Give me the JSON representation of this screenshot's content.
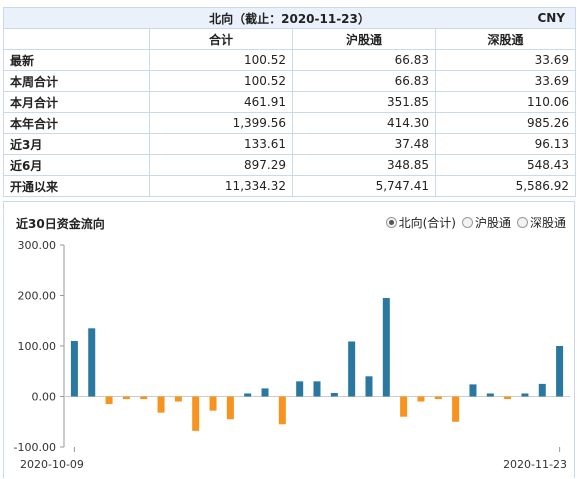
{
  "summary": {
    "caption": "北向（截止：2020-11-23）",
    "currency": "CNY",
    "columns": [
      "",
      "合计",
      "沪股通",
      "深股通"
    ],
    "rows": [
      {
        "label": "最新",
        "total": "100.52",
        "sh": "66.83",
        "sz": "33.69"
      },
      {
        "label": "本周合计",
        "total": "100.52",
        "sh": "66.83",
        "sz": "33.69"
      },
      {
        "label": "本月合计",
        "total": "461.91",
        "sh": "351.85",
        "sz": "110.06"
      },
      {
        "label": "本年合计",
        "total": "1,399.56",
        "sh": "414.30",
        "sz": "985.26"
      },
      {
        "label": "近3月",
        "total": "133.61",
        "sh": "37.48",
        "sz": "96.13"
      },
      {
        "label": "近6月",
        "total": "897.29",
        "sh": "348.85",
        "sz": "548.43"
      },
      {
        "label": "开通以来",
        "total": "11,334.32",
        "sh": "5,747.41",
        "sz": "5,586.92"
      }
    ]
  },
  "chart_panel": {
    "title": "近30日资金流向",
    "legend_options": [
      {
        "label": "北向(合计)",
        "selected": true
      },
      {
        "label": "沪股通",
        "selected": false
      },
      {
        "label": "深股通",
        "selected": false
      }
    ]
  },
  "colors": {
    "positive": "#2a77a0",
    "negative": "#f7931e",
    "axis": "#999999",
    "grid": "#cccccc"
  },
  "chart_data": {
    "type": "bar",
    "title": "",
    "xlabel": "",
    "ylabel": "",
    "ylim": [
      -100,
      300
    ],
    "yticks": [
      "300.00",
      "200.00",
      "100.00",
      "0.00",
      "-100.00"
    ],
    "grid": false,
    "x_start_label": "2020-10-09",
    "x_end_label": "2020-11-23",
    "values": [
      110,
      135,
      -15,
      -5,
      -5,
      -32,
      -10,
      -68,
      -28,
      -45,
      6,
      16,
      -55,
      30,
      30,
      7,
      109,
      40,
      195,
      -40,
      -10,
      -5,
      -50,
      24,
      6,
      -5,
      6,
      25,
      100
    ]
  }
}
